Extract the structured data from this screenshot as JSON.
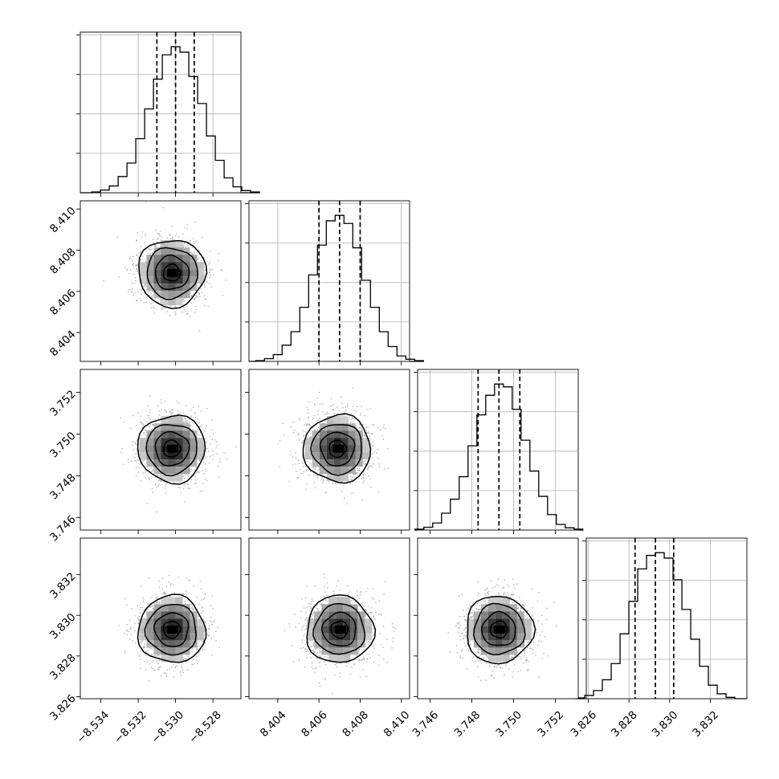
{
  "chart_data": {
    "type": "corner",
    "parameters": [
      {
        "ticks": [
          -8.534,
          -8.532,
          -8.53,
          -8.528
        ],
        "tick_labels": [
          "−8.534",
          "−8.532",
          "−8.530",
          "−8.528"
        ],
        "range": [
          -8.5351,
          -8.5265
        ]
      },
      {
        "ticks": [
          8.404,
          8.406,
          8.408,
          8.41
        ],
        "tick_labels": [
          "8.404",
          "8.406",
          "8.408",
          "8.410"
        ],
        "range": [
          8.4026,
          8.4104
        ]
      },
      {
        "ticks": [
          3.746,
          3.748,
          3.75,
          3.752
        ],
        "tick_labels": [
          "3.746",
          "3.748",
          "3.750",
          "3.752"
        ],
        "range": [
          3.7454,
          3.7531
        ]
      },
      {
        "ticks": [
          3.826,
          3.828,
          3.83,
          3.832
        ],
        "tick_labels": [
          "3.826",
          "3.828",
          "3.830",
          "3.832"
        ],
        "range": [
          3.8259,
          3.8338
        ]
      }
    ],
    "histograms": [
      {
        "quantiles": [
          -8.531,
          -8.53,
          -8.529
        ],
        "counts": [
          3,
          10,
          25,
          60,
          110,
          200,
          310,
          420,
          510,
          540,
          520,
          430,
          330,
          210,
          120,
          55,
          22,
          8,
          3
        ]
      },
      {
        "quantiles": [
          8.406,
          8.407,
          8.408
        ],
        "counts": [
          3,
          10,
          25,
          60,
          110,
          200,
          320,
          430,
          520,
          540,
          510,
          420,
          300,
          200,
          110,
          55,
          20,
          8,
          3
        ]
      },
      {
        "quantiles": [
          3.7483,
          3.7493,
          3.7503
        ],
        "counts": [
          3,
          10,
          25,
          60,
          110,
          190,
          300,
          410,
          480,
          520,
          510,
          430,
          320,
          210,
          120,
          55,
          20,
          8,
          3
        ]
      },
      {
        "quantiles": [
          3.8283,
          3.8293,
          3.8302
        ],
        "counts": [
          3,
          12,
          30,
          70,
          130,
          240,
          360,
          480,
          530,
          540,
          520,
          440,
          330,
          220,
          120,
          50,
          18,
          5
        ]
      }
    ],
    "panels_2d": [
      {
        "row": 1,
        "col": 0,
        "center": [
          -8.5302,
          8.4069
        ]
      },
      {
        "row": 2,
        "col": 0,
        "center": [
          -8.5302,
          3.7493
        ]
      },
      {
        "row": 2,
        "col": 1,
        "center": [
          8.4069,
          3.7493
        ]
      },
      {
        "row": 3,
        "col": 0,
        "center": [
          -8.5302,
          3.8293
        ]
      },
      {
        "row": 3,
        "col": 1,
        "center": [
          8.407,
          3.8293
        ]
      },
      {
        "row": 3,
        "col": 2,
        "center": [
          3.7493,
          3.8293
        ]
      }
    ],
    "grid": true,
    "contour_levels": [
      0.5,
      1.0,
      1.5,
      2.0
    ]
  }
}
